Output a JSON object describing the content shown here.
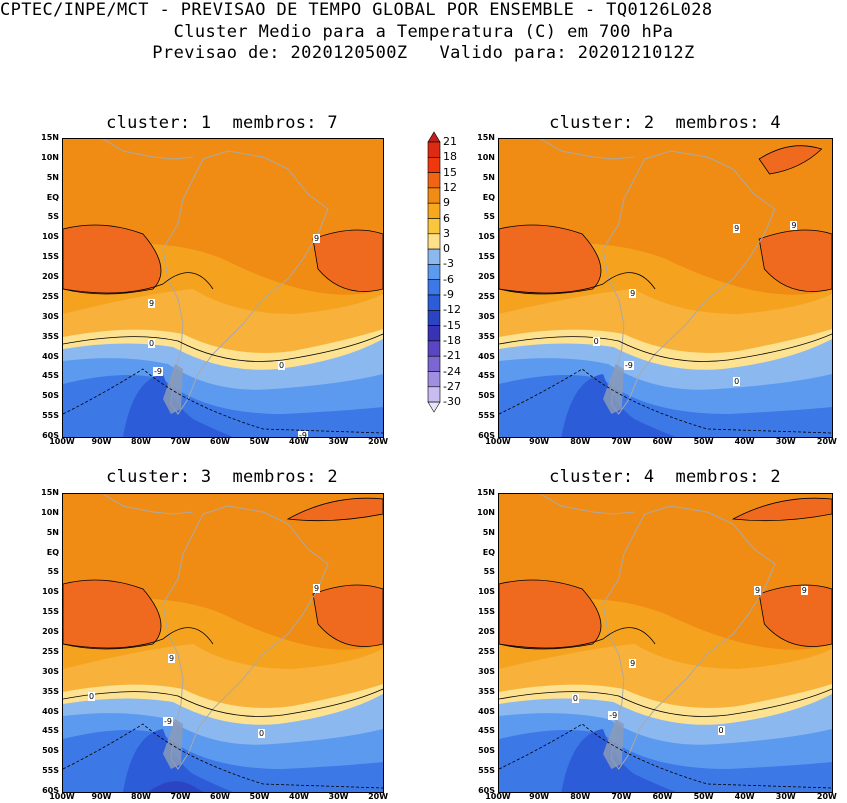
{
  "header": {
    "line1": "CPTEC/INPE/MCT - PREVISAO DE TEMPO GLOBAL POR ENSEMBLE - TQ0126L028",
    "line2": "Cluster Medio para a Temperatura (C) em 700 hPa",
    "line3": "Previsao de: 2020120500Z   Valido para: 2020121012Z"
  },
  "panels": [
    {
      "title": "cluster: 1  membros: 7"
    },
    {
      "title": "cluster: 2  membros: 4"
    },
    {
      "title": "cluster: 3  membros: 2"
    },
    {
      "title": "cluster: 4  membros: 2"
    }
  ],
  "axes": {
    "lat": [
      "15N",
      "10N",
      "5N",
      "EQ",
      "5S",
      "10S",
      "15S",
      "20S",
      "25S",
      "30S",
      "35S",
      "40S",
      "45S",
      "50S",
      "55S",
      "60S"
    ],
    "lon": [
      "100W",
      "90W",
      "80W",
      "70W",
      "60W",
      "50W",
      "40W",
      "30W",
      "20W"
    ]
  },
  "colorbar": {
    "levels": [
      "21",
      "18",
      "15",
      "12",
      "9",
      "6",
      "3",
      "0",
      "-3",
      "-6",
      "-9",
      "-12",
      "-15",
      "-18",
      "-21",
      "-24",
      "-27",
      "-30"
    ],
    "colors": [
      "#c41e1e",
      "#dc2b12",
      "#f0370e",
      "#f06414",
      "#f08c14",
      "#f8a81c",
      "#fac63e",
      "#fde088",
      "#8cb8f0",
      "#5c9af0",
      "#3c78e6",
      "#2c5cd8",
      "#2a44c4",
      "#3a32b4",
      "#5a46c4",
      "#7c66d4",
      "#a08ee0",
      "#c8bcf0",
      "#e8e4fa"
    ]
  },
  "contour_labels": {
    "p1": [
      "9",
      "9",
      "0",
      "0",
      "-9",
      "-9"
    ],
    "p2": [
      "9",
      "9",
      "9",
      "0",
      "0",
      "-9"
    ],
    "p3": [
      "9",
      "9",
      "0",
      "0",
      "-9"
    ],
    "p4": [
      "9",
      "9",
      "0",
      "0",
      "-9",
      "9"
    ]
  },
  "colors": {
    "land_outline": "#a9a9a9",
    "contour": "#000000"
  }
}
